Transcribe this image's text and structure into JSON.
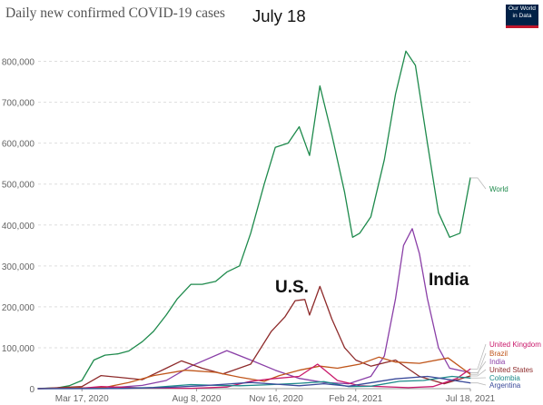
{
  "header": {
    "title": "Daily new confirmed COVID-19 cases",
    "date_overlay": "July 18",
    "logo_line1": "Our World",
    "logo_line2": "in Data"
  },
  "annotations": {
    "us": "U.S.",
    "india": "India"
  },
  "colors": {
    "world": "#1e8a4c",
    "united_kingdom": "#c9196b",
    "brazil": "#c0561b",
    "india": "#8a3fa7",
    "united_states": "#8e2b2b",
    "colombia": "#1e8a8a",
    "argentina": "#3a4a9a",
    "grid": "#dddddd",
    "axis_text": "#666666"
  },
  "chart_data": {
    "type": "line",
    "title": "Daily new confirmed COVID-19 cases",
    "x_start": "2020-01-22",
    "x_end": "2021-07-18",
    "ylim": [
      0,
      850000
    ],
    "y_ticks": [
      0,
      100000,
      200000,
      300000,
      400000,
      500000,
      600000,
      700000,
      800000
    ],
    "y_tick_labels": [
      "0",
      "100,000",
      "200,000",
      "300,000",
      "400,000",
      "500,000",
      "600,000",
      "700,000",
      "800,000"
    ],
    "x_ticks": [
      "2020-03-17",
      "2020-08-08",
      "2020-11-16",
      "2021-02-24",
      "2021-07-18"
    ],
    "x_tick_labels": [
      "Mar 17, 2020",
      "Aug 8, 2020",
      "Nov 16, 2020",
      "Feb 24, 2021",
      "Jul 18, 2021"
    ],
    "grid": "horizontal dotted",
    "legend": "right, line labels",
    "series": [
      {
        "name": "World",
        "color": "#1e8a4c",
        "points": [
          [
            "2020-01-22",
            500
          ],
          [
            "2020-02-15",
            2000
          ],
          [
            "2020-03-01",
            7000
          ],
          [
            "2020-03-17",
            20000
          ],
          [
            "2020-04-01",
            70000
          ],
          [
            "2020-04-15",
            82000
          ],
          [
            "2020-05-01",
            85000
          ],
          [
            "2020-05-15",
            92000
          ],
          [
            "2020-06-01",
            115000
          ],
          [
            "2020-06-15",
            140000
          ],
          [
            "2020-07-01",
            180000
          ],
          [
            "2020-07-15",
            220000
          ],
          [
            "2020-08-01",
            255000
          ],
          [
            "2020-08-15",
            255000
          ],
          [
            "2020-09-01",
            262000
          ],
          [
            "2020-09-15",
            285000
          ],
          [
            "2020-10-01",
            300000
          ],
          [
            "2020-10-15",
            380000
          ],
          [
            "2020-11-01",
            500000
          ],
          [
            "2020-11-15",
            590000
          ],
          [
            "2020-12-01",
            600000
          ],
          [
            "2020-12-15",
            640000
          ],
          [
            "2020-12-28",
            570000
          ],
          [
            "2021-01-10",
            740000
          ],
          [
            "2021-01-25",
            620000
          ],
          [
            "2021-02-10",
            480000
          ],
          [
            "2021-02-20",
            370000
          ],
          [
            "2021-03-01",
            380000
          ],
          [
            "2021-03-15",
            420000
          ],
          [
            "2021-04-01",
            560000
          ],
          [
            "2021-04-15",
            720000
          ],
          [
            "2021-04-28",
            825000
          ],
          [
            "2021-05-10",
            790000
          ],
          [
            "2021-05-25",
            600000
          ],
          [
            "2021-06-08",
            430000
          ],
          [
            "2021-06-22",
            370000
          ],
          [
            "2021-07-05",
            380000
          ],
          [
            "2021-07-18",
            515000
          ]
        ]
      },
      {
        "name": "India",
        "color": "#8a3fa7",
        "points": [
          [
            "2020-01-22",
            0
          ],
          [
            "2020-04-15",
            1000
          ],
          [
            "2020-06-01",
            8000
          ],
          [
            "2020-07-01",
            20000
          ],
          [
            "2020-08-01",
            55000
          ],
          [
            "2020-09-15",
            93000
          ],
          [
            "2020-10-15",
            70000
          ],
          [
            "2020-11-15",
            45000
          ],
          [
            "2020-12-15",
            25000
          ],
          [
            "2021-01-15",
            15000
          ],
          [
            "2021-02-15",
            12000
          ],
          [
            "2021-03-15",
            30000
          ],
          [
            "2021-04-01",
            80000
          ],
          [
            "2021-04-15",
            220000
          ],
          [
            "2021-04-25",
            350000
          ],
          [
            "2021-05-06",
            391000
          ],
          [
            "2021-05-15",
            330000
          ],
          [
            "2021-05-25",
            220000
          ],
          [
            "2021-06-08",
            100000
          ],
          [
            "2021-06-22",
            50000
          ],
          [
            "2021-07-18",
            39000
          ]
        ]
      },
      {
        "name": "United States",
        "color": "#8e2b2b",
        "points": [
          [
            "2020-01-22",
            0
          ],
          [
            "2020-03-17",
            5000
          ],
          [
            "2020-04-10",
            32000
          ],
          [
            "2020-05-01",
            28000
          ],
          [
            "2020-06-01",
            22000
          ],
          [
            "2020-07-01",
            50000
          ],
          [
            "2020-07-20",
            68000
          ],
          [
            "2020-08-15",
            50000
          ],
          [
            "2020-09-10",
            36000
          ],
          [
            "2020-10-15",
            60000
          ],
          [
            "2020-11-10",
            140000
          ],
          [
            "2020-11-27",
            175000
          ],
          [
            "2020-12-10",
            215000
          ],
          [
            "2020-12-22",
            218000
          ],
          [
            "2020-12-28",
            180000
          ],
          [
            "2021-01-10",
            250000
          ],
          [
            "2021-01-25",
            170000
          ],
          [
            "2021-02-10",
            100000
          ],
          [
            "2021-02-24",
            70000
          ],
          [
            "2021-03-15",
            55000
          ],
          [
            "2021-04-15",
            70000
          ],
          [
            "2021-05-15",
            30000
          ],
          [
            "2021-06-15",
            12000
          ],
          [
            "2021-07-18",
            31000
          ]
        ]
      },
      {
        "name": "Brazil",
        "color": "#c0561b",
        "points": [
          [
            "2020-01-22",
            0
          ],
          [
            "2020-04-15",
            3000
          ],
          [
            "2020-05-15",
            15000
          ],
          [
            "2020-06-15",
            32000
          ],
          [
            "2020-07-25",
            45000
          ],
          [
            "2020-09-01",
            40000
          ],
          [
            "2020-10-01",
            28000
          ],
          [
            "2020-11-01",
            18000
          ],
          [
            "2020-11-20",
            32000
          ],
          [
            "2020-12-15",
            45000
          ],
          [
            "2021-01-10",
            55000
          ],
          [
            "2021-02-01",
            50000
          ],
          [
            "2021-03-01",
            60000
          ],
          [
            "2021-03-25",
            77000
          ],
          [
            "2021-04-15",
            65000
          ],
          [
            "2021-05-15",
            62000
          ],
          [
            "2021-06-20",
            75000
          ],
          [
            "2021-07-18",
            35000
          ]
        ]
      },
      {
        "name": "United Kingdom",
        "color": "#c9196b",
        "points": [
          [
            "2020-01-22",
            0
          ],
          [
            "2020-03-17",
            1000
          ],
          [
            "2020-04-10",
            5000
          ],
          [
            "2020-06-01",
            2000
          ],
          [
            "2020-08-01",
            800
          ],
          [
            "2020-09-15",
            4000
          ],
          [
            "2020-10-15",
            18000
          ],
          [
            "2020-11-10",
            24000
          ],
          [
            "2020-12-15",
            30000
          ],
          [
            "2021-01-07",
            60000
          ],
          [
            "2021-02-01",
            20000
          ],
          [
            "2021-03-01",
            7000
          ],
          [
            "2021-05-01",
            2500
          ],
          [
            "2021-06-01",
            5000
          ],
          [
            "2021-07-01",
            25000
          ],
          [
            "2021-07-18",
            48000
          ]
        ]
      },
      {
        "name": "Colombia",
        "color": "#1e8a8a",
        "points": [
          [
            "2020-01-22",
            0
          ],
          [
            "2020-05-01",
            500
          ],
          [
            "2020-06-15",
            3000
          ],
          [
            "2020-08-01",
            10000
          ],
          [
            "2020-09-01",
            8000
          ],
          [
            "2020-10-01",
            7000
          ],
          [
            "2020-11-01",
            9000
          ],
          [
            "2020-12-15",
            13000
          ],
          [
            "2021-01-15",
            17000
          ],
          [
            "2021-02-15",
            5000
          ],
          [
            "2021-03-15",
            6000
          ],
          [
            "2021-04-20",
            18000
          ],
          [
            "2021-05-20",
            20000
          ],
          [
            "2021-06-25",
            30000
          ],
          [
            "2021-07-18",
            26000
          ]
        ]
      },
      {
        "name": "Argentina",
        "color": "#3a4a9a",
        "points": [
          [
            "2020-01-22",
            0
          ],
          [
            "2020-05-01",
            200
          ],
          [
            "2020-07-01",
            3000
          ],
          [
            "2020-08-15",
            7000
          ],
          [
            "2020-10-15",
            15000
          ],
          [
            "2020-11-15",
            11000
          ],
          [
            "2020-12-15",
            7000
          ],
          [
            "2021-01-15",
            12000
          ],
          [
            "2021-02-15",
            6000
          ],
          [
            "2021-04-15",
            24000
          ],
          [
            "2021-05-25",
            30000
          ],
          [
            "2021-06-15",
            24000
          ],
          [
            "2021-07-18",
            14000
          ]
        ]
      }
    ]
  }
}
